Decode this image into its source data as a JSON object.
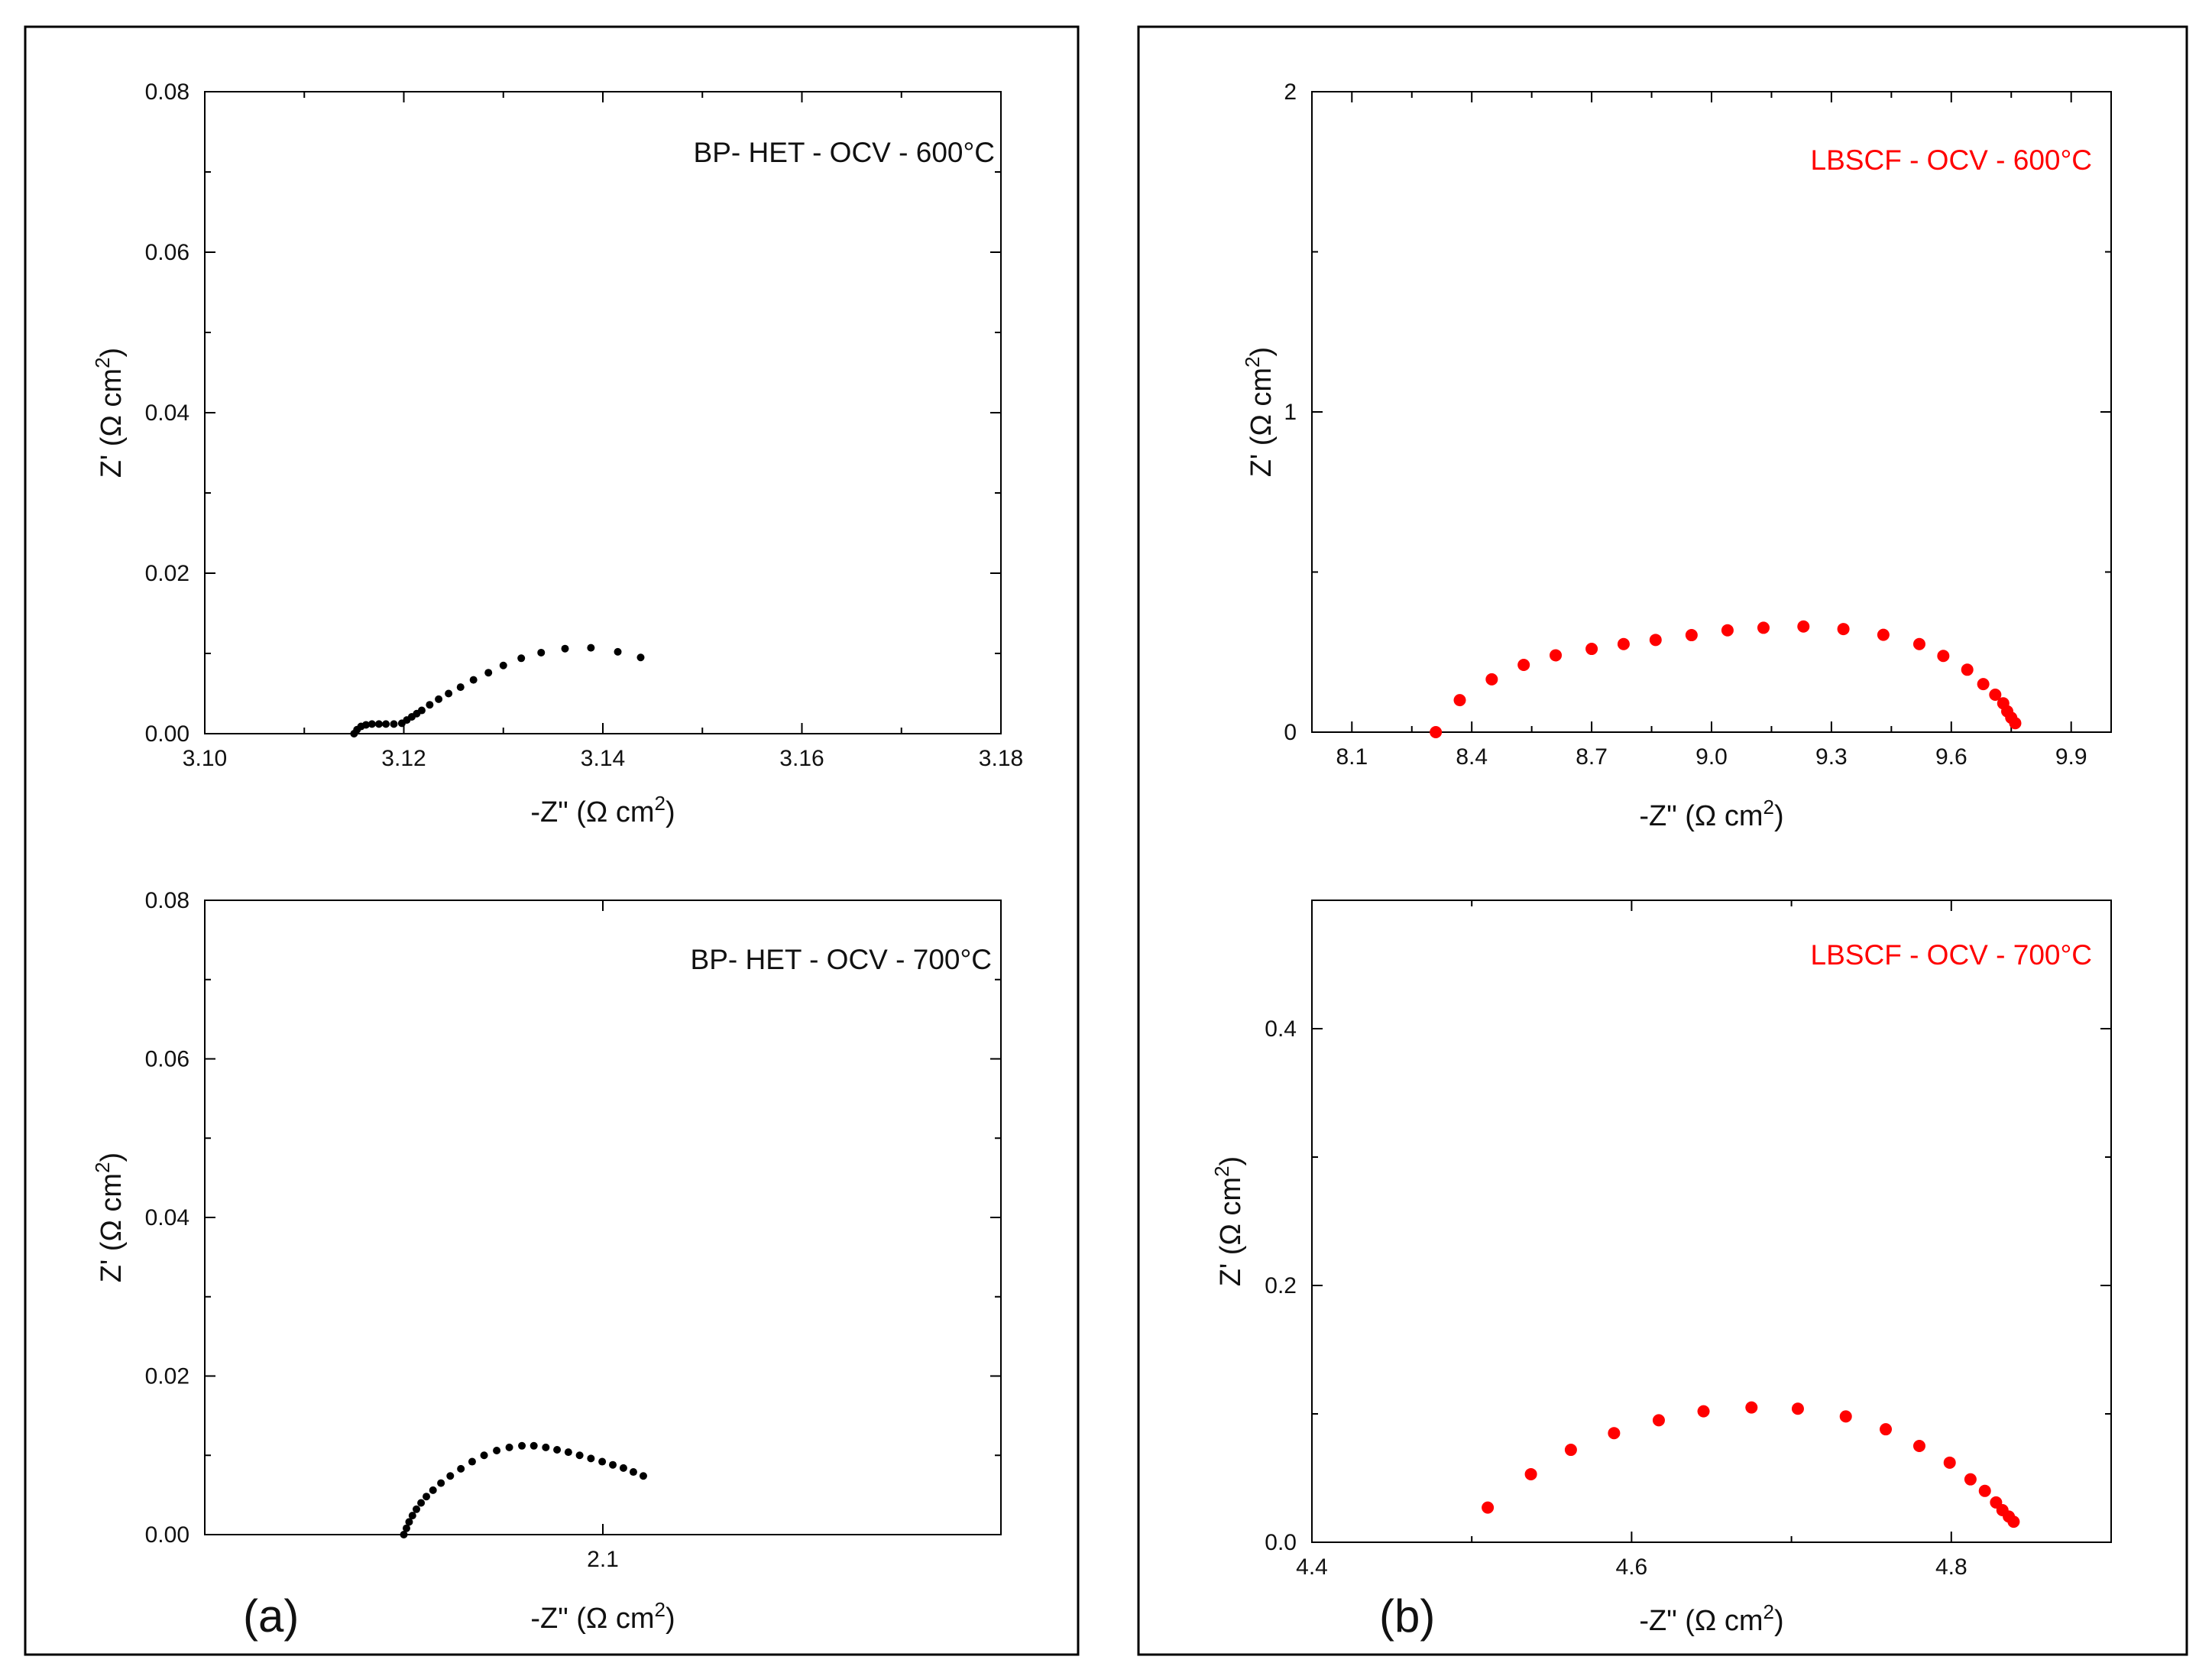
{
  "panels": [
    {
      "label": "(a)"
    },
    {
      "label": "(b)"
    }
  ],
  "colors": {
    "black_series": "#000000",
    "red_series": "#ff0000",
    "frame": "#000000"
  },
  "chart_data": [
    {
      "type": "scatter",
      "panel": "(a)",
      "annotation": "BP- HET - OCV - 600°C",
      "xlabel": "-Z\" (Ω cm²)",
      "ylabel": "Z' (Ω cm²)",
      "xlim": [
        3.1,
        3.18
      ],
      "ylim": [
        0.0,
        0.08
      ],
      "xticks": [
        "3.10",
        "3.12",
        "3.14",
        "3.16",
        "3.18"
      ],
      "yticks": [
        "0.00",
        "0.02",
        "0.04",
        "0.06",
        "0.08"
      ],
      "color": "#000000",
      "series": [
        {
          "name": "BP- HET - OCV - 600°C",
          "x": [
            3.115,
            3.1153,
            3.1157,
            3.1162,
            3.1168,
            3.1175,
            3.1182,
            3.119,
            3.1198,
            3.1203,
            3.1208,
            3.1213,
            3.1218,
            3.1226,
            3.1235,
            3.1245,
            3.1257,
            3.127,
            3.1285,
            3.13,
            3.1318,
            3.1338,
            3.1362,
            3.1388,
            3.1415,
            3.1438
          ],
          "y": [
            0.0,
            0.0005,
            0.0009,
            0.0011,
            0.0012,
            0.0012,
            0.0012,
            0.0012,
            0.0013,
            0.0017,
            0.0021,
            0.0025,
            0.0029,
            0.0036,
            0.0043,
            0.005,
            0.0058,
            0.0067,
            0.0076,
            0.0085,
            0.0094,
            0.0101,
            0.0106,
            0.0107,
            0.0102,
            0.0095
          ]
        }
      ]
    },
    {
      "type": "scatter",
      "panel": "(a)",
      "annotation": "BP- HET - OCV - 700°C",
      "xlabel": "-Z\" (Ω cm²)",
      "ylabel": "Z' (Ω cm²)",
      "xlim": [
        2.04,
        2.16
      ],
      "ylim": [
        0.0,
        0.08
      ],
      "xticks": [
        "2.1"
      ],
      "yticks": [
        "0.00",
        "0.02",
        "0.04",
        "0.06",
        "0.08"
      ],
      "color": "#000000",
      "series": [
        {
          "name": "BP- HET - OCV - 700°C",
          "x": [
            2.07,
            2.0704,
            2.0708,
            2.0713,
            2.0719,
            2.0726,
            2.0734,
            2.0744,
            2.0756,
            2.077,
            2.0786,
            2.0803,
            2.0821,
            2.084,
            2.0859,
            2.0878,
            2.0896,
            2.0914,
            2.0931,
            2.0948,
            2.0965,
            2.0982,
            2.0999,
            2.1015,
            2.1031,
            2.1046,
            2.1061
          ],
          "y": [
            0.0,
            0.0008,
            0.0016,
            0.0024,
            0.0032,
            0.004,
            0.0048,
            0.0056,
            0.0065,
            0.0074,
            0.0083,
            0.0092,
            0.01,
            0.0106,
            0.011,
            0.0112,
            0.0112,
            0.011,
            0.0107,
            0.0104,
            0.01,
            0.0096,
            0.0092,
            0.0088,
            0.0084,
            0.0079,
            0.0074
          ]
        }
      ]
    },
    {
      "type": "scatter",
      "panel": "(b)",
      "annotation": "LBSCF - OCV - 600°C",
      "xlabel": "-Z\" (Ω cm²)",
      "ylabel": "Z' (Ω cm²)",
      "xlim": [
        8.0,
        10.0
      ],
      "ylim": [
        0,
        2
      ],
      "xticks": [
        "8.1",
        "8.4",
        "8.7",
        "9.0",
        "9.3",
        "9.6",
        "9.9"
      ],
      "yticks": [
        "0",
        "1",
        "2"
      ],
      "color": "#ff0000",
      "series": [
        {
          "name": "LBSCF - OCV - 600°C",
          "x": [
            8.31,
            8.37,
            8.45,
            8.53,
            8.61,
            8.7,
            8.78,
            8.86,
            8.95,
            9.04,
            9.13,
            9.23,
            9.33,
            9.43,
            9.52,
            9.58,
            9.64,
            9.68,
            9.71,
            9.73,
            9.74,
            9.75,
            9.76
          ],
          "y": [
            0.0,
            0.1,
            0.165,
            0.21,
            0.24,
            0.26,
            0.275,
            0.288,
            0.303,
            0.318,
            0.326,
            0.33,
            0.322,
            0.304,
            0.275,
            0.238,
            0.195,
            0.15,
            0.117,
            0.09,
            0.065,
            0.045,
            0.028
          ]
        }
      ]
    },
    {
      "type": "scatter",
      "panel": "(b)",
      "annotation": "LBSCF - OCV - 700°C",
      "xlabel": "-Z\" (Ω cm²)",
      "ylabel": "Z' (Ω cm²)",
      "xlim": [
        4.4,
        4.9
      ],
      "ylim": [
        0.0,
        0.5
      ],
      "xticks": [
        "4.4",
        "4.6",
        "4.8"
      ],
      "yticks": [
        "0.0",
        "0.2",
        "0.4"
      ],
      "color": "#ff0000",
      "series": [
        {
          "name": "LBSCF - OCV - 700°C",
          "x": [
            4.51,
            4.537,
            4.562,
            4.589,
            4.617,
            4.645,
            4.675,
            4.704,
            4.734,
            4.759,
            4.78,
            4.799,
            4.812,
            4.821,
            4.828,
            4.832,
            4.836,
            4.839
          ],
          "y": [
            0.027,
            0.053,
            0.072,
            0.085,
            0.095,
            0.102,
            0.105,
            0.104,
            0.098,
            0.088,
            0.075,
            0.062,
            0.049,
            0.04,
            0.031,
            0.025,
            0.02,
            0.016
          ]
        }
      ]
    }
  ]
}
